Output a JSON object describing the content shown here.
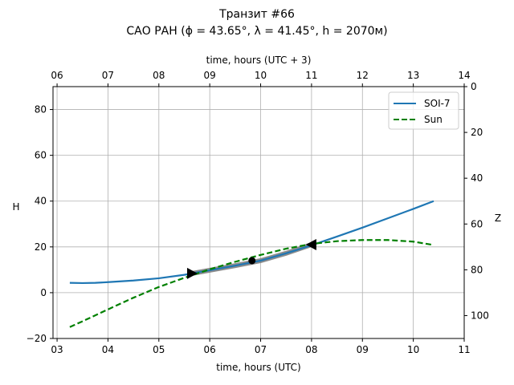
{
  "chart_data": {
    "type": "line",
    "title_line1": "Транзит #66",
    "title_line2": "САО РАН (ϕ = 43.65°, λ = 41.45°, h = 2070м)",
    "xlabel": "time, hours (UTC)",
    "xlabel_top": "time, hours (UTC + 3)",
    "ylabel": "H",
    "ylabel_right": "Z",
    "xlim": [
      2.92,
      11
    ],
    "ylim": [
      -20,
      90
    ],
    "grid": true,
    "x_ticks": [
      3,
      4,
      5,
      6,
      7,
      8,
      9,
      10,
      11
    ],
    "x_tick_labels": [
      "03",
      "04",
      "05",
      "06",
      "07",
      "08",
      "09",
      "10",
      "11"
    ],
    "x_top_tick_labels": [
      "06",
      "07",
      "08",
      "09",
      "10",
      "11",
      "12",
      "13",
      "14"
    ],
    "y_ticks": [
      -20,
      0,
      20,
      40,
      60,
      80
    ],
    "y_tick_labels": [
      "−20",
      "0",
      "20",
      "40",
      "60",
      "80"
    ],
    "z_ticks": [
      0,
      20,
      40,
      60,
      80,
      100
    ],
    "z_tick_labels": [
      "0",
      "20",
      "40",
      "60",
      "80",
      "100"
    ],
    "legend_placement": "top-right",
    "series": [
      {
        "name": "SOI-7",
        "color": "#1f77b4",
        "style": "solid",
        "x": [
          3.25,
          3.5,
          3.75,
          4,
          4.5,
          5,
          5.5,
          6,
          6.5,
          7,
          7.5,
          8,
          8.5,
          9,
          9.5,
          10,
          10.4
        ],
        "y": [
          4.3,
          4.2,
          4.3,
          4.6,
          5.3,
          6.3,
          7.8,
          9.8,
          11.8,
          14,
          17.2,
          20.7,
          24.5,
          28.4,
          32.5,
          36.6,
          40
        ]
      },
      {
        "name": "Sun",
        "color": "#008000",
        "style": "dashed",
        "x": [
          3.25,
          3.5,
          4,
          4.5,
          5,
          5.5,
          6,
          6.5,
          7,
          7.5,
          8,
          8.5,
          9,
          9.5,
          10,
          10.35
        ],
        "y": [
          -15,
          -12.5,
          -7.3,
          -2.2,
          2.5,
          6.5,
          10.2,
          13.5,
          16.5,
          19.2,
          21.3,
          22.5,
          23,
          23,
          22.3,
          21
        ]
      }
    ],
    "transit": {
      "start": [
        5.65,
        8.4
      ],
      "end": [
        8.0,
        21
      ],
      "middle": [
        6.83,
        14
      ],
      "color": "#808080"
    }
  }
}
